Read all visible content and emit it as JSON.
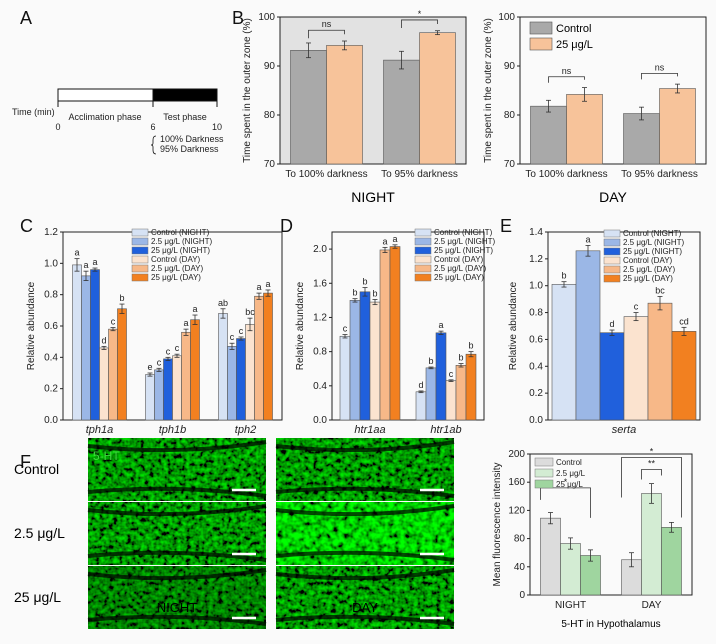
{
  "panel_labels": {
    "a": "A",
    "b": "B",
    "c": "C",
    "d": "D",
    "e": "E",
    "f": "F"
  },
  "panel_a": {
    "time_label": "Time (min)",
    "ticks": [
      "0",
      "6",
      "10"
    ],
    "acclimation": "Acclimation phase",
    "test": "Test phase",
    "opt1": "100% Darkness",
    "opt2": "95% Darkness"
  },
  "colors": {
    "control_gray": "#a9a9a9",
    "treat_peach": "#f7c39a",
    "ctrl_night": "#d6e2f4",
    "low_night": "#9bb7e6",
    "high_night": "#2060dc",
    "ctrl_day": "#fbe3cf",
    "low_day": "#f7b888",
    "high_day": "#f28020",
    "f_control": "#dcdcdc",
    "f_low": "#d3ecd3",
    "f_high": "#9fd59f"
  },
  "chart_data": [
    {
      "id": "B-night",
      "type": "bar",
      "ylabel": "Time spent in the outer zone (%)",
      "xtitle": "NIGHT",
      "ylim": [
        70,
        100
      ],
      "yticks": [
        "70",
        "80",
        "90",
        "100"
      ],
      "categories": [
        "To 100% darkness",
        "To 95% darkness"
      ],
      "series": [
        {
          "name": "Control",
          "values": [
            93.2,
            91.2
          ],
          "err": [
            1.5,
            1.8
          ]
        },
        {
          "name": "25 μg/L",
          "values": [
            94.2,
            96.8
          ],
          "err": [
            0.9,
            0.4
          ]
        }
      ],
      "annotations": [
        "ns",
        "*"
      ]
    },
    {
      "id": "B-day",
      "type": "bar",
      "ylabel": "Time spent in the outer zone (%)",
      "xtitle": "DAY",
      "ylim": [
        70,
        100
      ],
      "yticks": [
        "70",
        "80",
        "90",
        "100"
      ],
      "categories": [
        "To 100% darkness",
        "To 95% darkness"
      ],
      "series": [
        {
          "name": "Control",
          "values": [
            81.8,
            80.3
          ],
          "err": [
            1.2,
            1.3
          ]
        },
        {
          "name": "25 μg/L",
          "values": [
            84.2,
            85.4
          ],
          "err": [
            1.4,
            0.9
          ]
        }
      ],
      "annotations": [
        "ns",
        "ns"
      ],
      "legend": [
        "Control",
        "25 μg/L"
      ]
    },
    {
      "id": "C",
      "type": "bar",
      "ylabel": "Relative abundance",
      "ylim": [
        0,
        1.2
      ],
      "yticks": [
        "0.0",
        "0.2",
        "0.4",
        "0.6",
        "0.8",
        "1.0",
        "1.2"
      ],
      "categories": [
        "tph1a",
        "tph1b",
        "tph2"
      ],
      "series": [
        {
          "name": "Control (NIGHT)",
          "values": [
            0.99,
            0.29,
            0.68
          ],
          "err": [
            0.04,
            0.01,
            0.03
          ],
          "letters": [
            "a",
            "e",
            "ab"
          ]
        },
        {
          "name": "2.5 μg/L (NIGHT)",
          "values": [
            0.92,
            0.32,
            0.47
          ],
          "err": [
            0.03,
            0.01,
            0.02
          ],
          "letters": [
            "a",
            "c",
            "c"
          ]
        },
        {
          "name": "25 μg/L (NIGHT)",
          "values": [
            0.96,
            0.39,
            0.52
          ],
          "err": [
            0.01,
            0.01,
            0.01
          ],
          "letters": [
            "a",
            "c",
            "c"
          ]
        },
        {
          "name": "Control (DAY)",
          "values": [
            0.46,
            0.41,
            0.61
          ],
          "err": [
            0.01,
            0.01,
            0.04
          ],
          "letters": [
            "d",
            "c",
            "bc"
          ]
        },
        {
          "name": "2.5 μg/L (DAY)",
          "values": [
            0.58,
            0.56,
            0.79
          ],
          "err": [
            0.01,
            0.02,
            0.02
          ],
          "letters": [
            "c",
            "a",
            "a"
          ]
        },
        {
          "name": "25 μg/L (DAY)",
          "values": [
            0.71,
            0.64,
            0.81
          ],
          "err": [
            0.03,
            0.03,
            0.02
          ],
          "letters": [
            "b",
            "a",
            "a"
          ]
        }
      ]
    },
    {
      "id": "D",
      "type": "bar",
      "ylabel": "Relative abundance",
      "ylim": [
        0,
        2.2
      ],
      "yticks": [
        "0.0",
        "0.4",
        "0.8",
        "1.2",
        "1.6",
        "2.0"
      ],
      "categories": [
        "htr1aa",
        "htr1ab"
      ],
      "series": [
        {
          "name": "Control (NIGHT)",
          "values": [
            0.98,
            0.33
          ],
          "err": [
            0.02,
            0.01
          ],
          "letters": [
            "c",
            "d"
          ]
        },
        {
          "name": "2.5 μg/L (NIGHT)",
          "values": [
            1.4,
            0.61
          ],
          "err": [
            0.02,
            0.01
          ],
          "letters": [
            "b",
            "b"
          ]
        },
        {
          "name": "25 μg/L (NIGHT)",
          "values": [
            1.5,
            1.02
          ],
          "err": [
            0.05,
            0.02
          ],
          "letters": [
            "b",
            "a"
          ]
        },
        {
          "name": "Control (DAY)",
          "values": [
            1.38,
            0.46
          ],
          "err": [
            0.03,
            0.01
          ],
          "letters": [
            "b",
            "c"
          ]
        },
        {
          "name": "2.5 μg/L (DAY)",
          "values": [
            1.99,
            0.64
          ],
          "err": [
            0.03,
            0.02
          ],
          "letters": [
            "a",
            "b"
          ]
        },
        {
          "name": "25 μg/L (DAY)",
          "values": [
            2.03,
            0.77
          ],
          "err": [
            0.02,
            0.03
          ],
          "letters": [
            "a",
            "b"
          ]
        }
      ]
    },
    {
      "id": "E",
      "type": "bar",
      "ylabel": "Relative abundance",
      "ylim": [
        0,
        1.4
      ],
      "yticks": [
        "0.0",
        "0.2",
        "0.4",
        "0.6",
        "0.8",
        "1.0",
        "1.2",
        "1.4"
      ],
      "categories": [
        "serta"
      ],
      "series": [
        {
          "name": "Control (NIGHT)",
          "values": [
            1.01
          ],
          "err": [
            0.02
          ],
          "letters": [
            "b"
          ]
        },
        {
          "name": "2.5 μg/L (NIGHT)",
          "values": [
            1.26
          ],
          "err": [
            0.04
          ],
          "letters": [
            "a"
          ]
        },
        {
          "name": "25 μg/L (NIGHT)",
          "values": [
            0.65
          ],
          "err": [
            0.02
          ],
          "letters": [
            "d"
          ]
        },
        {
          "name": "Control (DAY)",
          "values": [
            0.77
          ],
          "err": [
            0.03
          ],
          "letters": [
            "c"
          ]
        },
        {
          "name": "2.5 μg/L (DAY)",
          "values": [
            0.87
          ],
          "err": [
            0.05
          ],
          "letters": [
            "bc"
          ]
        },
        {
          "name": "25 μg/L (DAY)",
          "values": [
            0.66
          ],
          "err": [
            0.03
          ],
          "letters": [
            "cd"
          ]
        }
      ]
    },
    {
      "id": "F-bar",
      "type": "bar",
      "ylabel": "Mean fluorescence intensity",
      "xtitle": "5-HT in Hypothalamus",
      "ylim": [
        0,
        200
      ],
      "yticks": [
        "0",
        "40",
        "80",
        "120",
        "160",
        "200"
      ],
      "categories": [
        "NIGHT",
        "DAY"
      ],
      "series": [
        {
          "name": "Control",
          "values": [
            109,
            50
          ],
          "err": [
            8,
            10
          ]
        },
        {
          "name": "2.5 μg/L",
          "values": [
            73,
            144
          ],
          "err": [
            8,
            14
          ]
        },
        {
          "name": "25 μg/L",
          "values": [
            56,
            96
          ],
          "err": [
            8,
            7
          ]
        }
      ],
      "annotations": [
        "*",
        "**",
        "*"
      ]
    }
  ],
  "panel_f": {
    "rows": [
      "Control",
      "2.5 μg/L",
      "25 μg/L"
    ],
    "cols": [
      "NIGHT",
      "DAY"
    ],
    "stain": "5-HT"
  }
}
